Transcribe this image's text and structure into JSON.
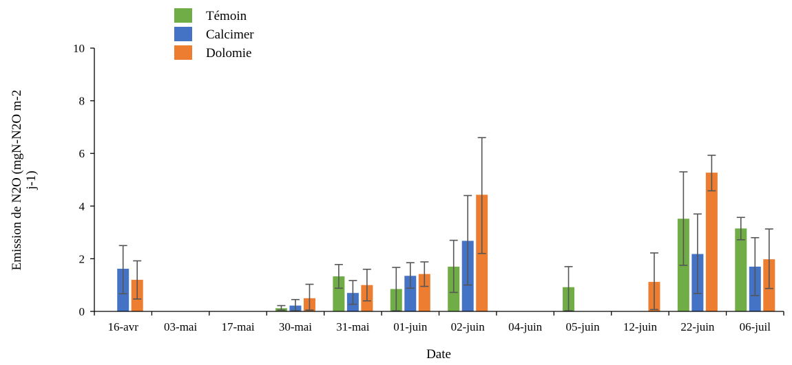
{
  "chart_data": {
    "type": "bar",
    "title": "",
    "xlabel": "Date",
    "ylabel_lines": [
      "Emission de N2O (mgN-N2O m-2",
      "j-1)"
    ],
    "ylim": [
      0,
      10
    ],
    "yticks": [
      0,
      2,
      4,
      6,
      8,
      10
    ],
    "grid": false,
    "legend_position": "top-left",
    "categories": [
      "16-avr",
      "03-mai",
      "17-mai",
      "30-mai",
      "31-mai",
      "01-juin",
      "02-juin",
      "04-juin",
      "05-juin",
      "12-juin",
      "22-juin",
      "06-juil"
    ],
    "series": [
      {
        "name": "Témoin",
        "color": "#70ad47",
        "values": [
          null,
          null,
          null,
          0.12,
          1.33,
          0.85,
          1.7,
          null,
          0.92,
          null,
          3.52,
          3.15
        ],
        "error_low": [
          null,
          null,
          null,
          0.05,
          0.88,
          0.02,
          0.72,
          null,
          0.02,
          null,
          1.75,
          2.72
        ],
        "error_high": [
          null,
          null,
          null,
          0.22,
          1.78,
          1.67,
          2.7,
          null,
          1.7,
          null,
          5.3,
          3.57
        ]
      },
      {
        "name": "Calcimer",
        "color": "#4472c4",
        "values": [
          1.62,
          null,
          null,
          0.22,
          0.7,
          1.35,
          2.68,
          null,
          null,
          null,
          2.18,
          1.7
        ],
        "error_low": [
          0.67,
          null,
          null,
          0.02,
          0.27,
          0.88,
          1.0,
          null,
          null,
          null,
          0.68,
          0.6
        ],
        "error_high": [
          2.5,
          null,
          null,
          0.45,
          1.17,
          1.85,
          4.4,
          null,
          null,
          null,
          3.7,
          2.8
        ]
      },
      {
        "name": "Dolomie",
        "color": "#ed7d31",
        "values": [
          1.2,
          null,
          null,
          0.5,
          1.0,
          1.42,
          4.43,
          null,
          null,
          1.12,
          5.27,
          1.98
        ],
        "error_low": [
          0.47,
          null,
          null,
          0.05,
          0.4,
          0.95,
          2.2,
          null,
          null,
          0.07,
          4.58,
          0.87
        ],
        "error_high": [
          1.92,
          null,
          null,
          1.03,
          1.6,
          1.88,
          6.6,
          null,
          null,
          2.22,
          5.93,
          3.13
        ]
      }
    ]
  }
}
